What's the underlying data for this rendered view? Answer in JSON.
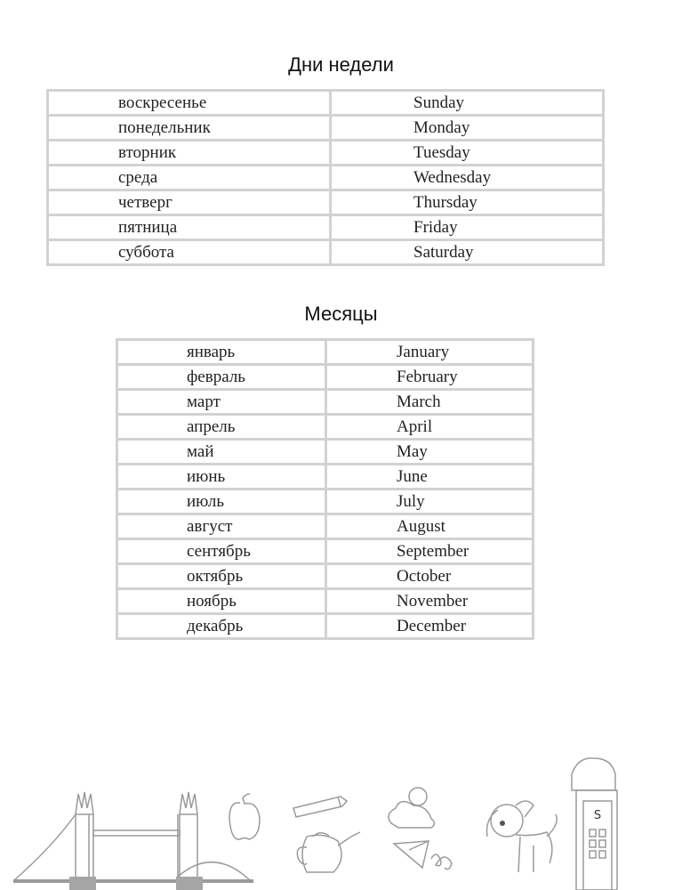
{
  "days_section": {
    "title": "Дни недели",
    "rows": [
      {
        "ru": "воскресенье",
        "en": "Sunday"
      },
      {
        "ru": "понедельник",
        "en": "Monday"
      },
      {
        "ru": "вторник",
        "en": "Tuesday"
      },
      {
        "ru": "среда",
        "en": "Wednesday"
      },
      {
        "ru": "четверг",
        "en": "Thursday"
      },
      {
        "ru": "пятница",
        "en": "Friday"
      },
      {
        "ru": "суббота",
        "en": "Saturday"
      }
    ]
  },
  "months_section": {
    "title": "Месяцы",
    "rows": [
      {
        "ru": "январь",
        "en": "January"
      },
      {
        "ru": "февраль",
        "en": "February"
      },
      {
        "ru": "март",
        "en": "March"
      },
      {
        "ru": "апрель",
        "en": "April"
      },
      {
        "ru": "май",
        "en": "May"
      },
      {
        "ru": "июнь",
        "en": "June"
      },
      {
        "ru": "июль",
        "en": "July"
      },
      {
        "ru": "август",
        "en": "August"
      },
      {
        "ru": "сентябрь",
        "en": "September"
      },
      {
        "ru": "октябрь",
        "en": "October"
      },
      {
        "ru": "ноябрь",
        "en": "November"
      },
      {
        "ru": "декабрь",
        "en": "December"
      }
    ]
  },
  "illustrations": {
    "phone_box_letter": "S",
    "line_color": "#9a9a9a"
  }
}
